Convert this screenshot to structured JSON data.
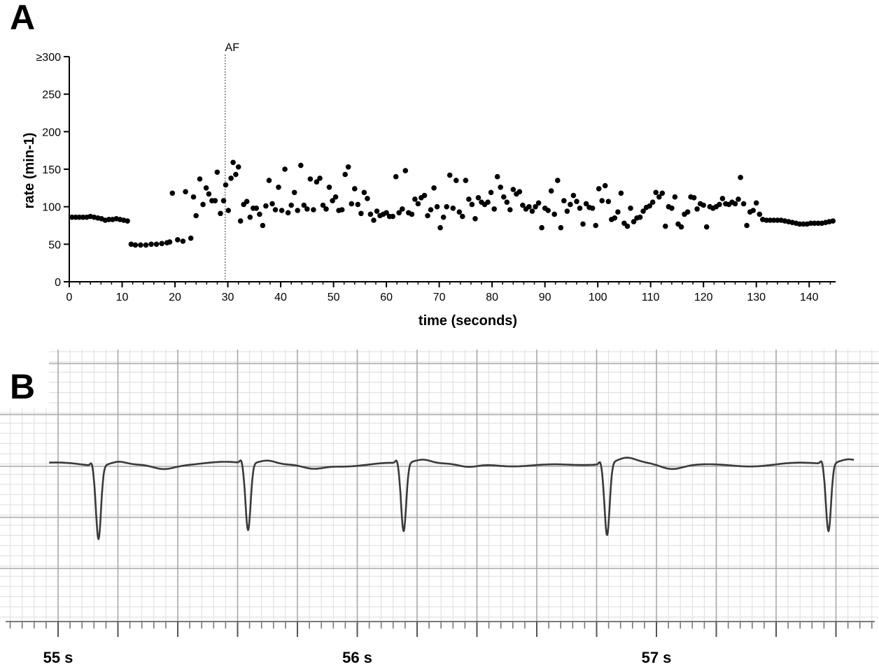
{
  "panels": {
    "a_letter": "A",
    "b_letter": "B"
  },
  "chart_data": [
    {
      "type": "scatter",
      "panel": "A",
      "title": "",
      "xlabel": "time (seconds)",
      "ylabel": "rate (min-1)",
      "xlim": [
        0,
        145
      ],
      "ylim": [
        0,
        300
      ],
      "xticks": [
        0,
        10,
        20,
        30,
        40,
        50,
        60,
        70,
        80,
        90,
        100,
        110,
        120,
        130,
        140
      ],
      "yticks": [
        0,
        50,
        100,
        150,
        200,
        250,
        300
      ],
      "ytick_labels": [
        "0",
        "50",
        "100",
        "150",
        "200",
        "250",
        "≥300"
      ],
      "annotation": {
        "label": "AF",
        "x": 29.5
      },
      "grid": false,
      "color": "#000000",
      "points": [
        [
          0.5,
          86
        ],
        [
          1.2,
          86
        ],
        [
          1.9,
          86
        ],
        [
          2.6,
          86
        ],
        [
          3.3,
          86
        ],
        [
          4.0,
          87
        ],
        [
          4.7,
          86
        ],
        [
          5.4,
          85
        ],
        [
          6.1,
          84
        ],
        [
          6.8,
          82
        ],
        [
          7.5,
          83
        ],
        [
          8.2,
          83
        ],
        [
          8.9,
          84
        ],
        [
          9.6,
          83
        ],
        [
          10.3,
          82
        ],
        [
          11.0,
          81
        ],
        [
          11.7,
          50
        ],
        [
          12.5,
          49
        ],
        [
          13.5,
          49
        ],
        [
          14.5,
          49
        ],
        [
          15.5,
          50
        ],
        [
          16.5,
          50
        ],
        [
          17.5,
          51
        ],
        [
          18.5,
          52
        ],
        [
          19.0,
          53
        ],
        [
          19.5,
          118
        ],
        [
          20.5,
          56
        ],
        [
          21.5,
          54
        ],
        [
          22.0,
          120
        ],
        [
          23.0,
          58
        ],
        [
          23.5,
          113
        ],
        [
          24.0,
          88
        ],
        [
          24.7,
          137
        ],
        [
          25.3,
          103
        ],
        [
          25.9,
          125
        ],
        [
          26.4,
          117
        ],
        [
          27.0,
          108
        ],
        [
          27.6,
          108
        ],
        [
          28.0,
          146
        ],
        [
          28.6,
          91
        ],
        [
          29.2,
          108
        ],
        [
          29.6,
          129
        ],
        [
          30.1,
          95
        ],
        [
          30.6,
          138
        ],
        [
          31.0,
          159
        ],
        [
          31.5,
          143
        ],
        [
          32.0,
          153
        ],
        [
          32.4,
          81
        ],
        [
          33.0,
          103
        ],
        [
          33.6,
          107
        ],
        [
          34.2,
          86
        ],
        [
          34.8,
          98
        ],
        [
          35.4,
          98
        ],
        [
          36.0,
          90
        ],
        [
          36.6,
          75
        ],
        [
          37.2,
          101
        ],
        [
          37.8,
          135
        ],
        [
          38.4,
          104
        ],
        [
          39.0,
          96
        ],
        [
          39.6,
          126
        ],
        [
          40.2,
          95
        ],
        [
          40.8,
          150
        ],
        [
          41.4,
          92
        ],
        [
          42.0,
          102
        ],
        [
          42.6,
          119
        ],
        [
          43.2,
          95
        ],
        [
          43.8,
          155
        ],
        [
          44.4,
          102
        ],
        [
          45.0,
          97
        ],
        [
          45.6,
          137
        ],
        [
          46.2,
          96
        ],
        [
          46.8,
          133
        ],
        [
          47.4,
          138
        ],
        [
          48.0,
          102
        ],
        [
          48.6,
          97
        ],
        [
          49.2,
          126
        ],
        [
          49.8,
          108
        ],
        [
          50.4,
          113
        ],
        [
          51.0,
          95
        ],
        [
          51.6,
          96
        ],
        [
          52.2,
          143
        ],
        [
          52.8,
          153
        ],
        [
          53.4,
          104
        ],
        [
          54.0,
          124
        ],
        [
          54.6,
          103
        ],
        [
          55.2,
          91
        ],
        [
          55.8,
          119
        ],
        [
          56.4,
          111
        ],
        [
          57.0,
          90
        ],
        [
          57.6,
          82
        ],
        [
          58.2,
          94
        ],
        [
          58.8,
          88
        ],
        [
          59.4,
          90
        ],
        [
          60.0,
          92
        ],
        [
          60.6,
          87
        ],
        [
          61.2,
          87
        ],
        [
          61.8,
          140
        ],
        [
          62.4,
          92
        ],
        [
          63.0,
          97
        ],
        [
          63.6,
          148
        ],
        [
          64.2,
          92
        ],
        [
          64.8,
          90
        ],
        [
          65.4,
          110
        ],
        [
          66.0,
          104
        ],
        [
          66.6,
          112
        ],
        [
          67.2,
          115
        ],
        [
          67.8,
          88
        ],
        [
          68.4,
          96
        ],
        [
          69.0,
          125
        ],
        [
          69.6,
          100
        ],
        [
          70.2,
          72
        ],
        [
          70.8,
          86
        ],
        [
          71.4,
          100
        ],
        [
          72.0,
          142
        ],
        [
          72.6,
          98
        ],
        [
          73.2,
          135
        ],
        [
          73.8,
          93
        ],
        [
          74.4,
          87
        ],
        [
          75.0,
          135
        ],
        [
          75.6,
          110
        ],
        [
          76.2,
          103
        ],
        [
          76.8,
          84
        ],
        [
          77.4,
          112
        ],
        [
          78.0,
          106
        ],
        [
          78.6,
          103
        ],
        [
          79.2,
          106
        ],
        [
          79.8,
          119
        ],
        [
          80.4,
          97
        ],
        [
          81.0,
          140
        ],
        [
          81.6,
          126
        ],
        [
          82.2,
          113
        ],
        [
          82.8,
          106
        ],
        [
          83.4,
          96
        ],
        [
          84.0,
          123
        ],
        [
          84.6,
          117
        ],
        [
          85.2,
          120
        ],
        [
          85.8,
          102
        ],
        [
          86.4,
          97
        ],
        [
          87.0,
          100
        ],
        [
          87.6,
          94
        ],
        [
          88.2,
          100
        ],
        [
          88.8,
          105
        ],
        [
          89.4,
          72
        ],
        [
          90.0,
          98
        ],
        [
          90.6,
          95
        ],
        [
          91.2,
          121
        ],
        [
          91.8,
          90
        ],
        [
          92.4,
          135
        ],
        [
          93.0,
          72
        ],
        [
          93.6,
          108
        ],
        [
          94.2,
          94
        ],
        [
          94.8,
          103
        ],
        [
          95.4,
          115
        ],
        [
          96.0,
          107
        ],
        [
          96.6,
          98
        ],
        [
          97.2,
          77
        ],
        [
          97.8,
          104
        ],
        [
          98.4,
          99
        ],
        [
          99.0,
          98
        ],
        [
          99.6,
          75
        ],
        [
          100.2,
          124
        ],
        [
          100.8,
          108
        ],
        [
          101.4,
          128
        ],
        [
          102.0,
          107
        ],
        [
          102.6,
          83
        ],
        [
          103.2,
          85
        ],
        [
          103.8,
          93
        ],
        [
          104.4,
          118
        ],
        [
          105.0,
          78
        ],
        [
          105.6,
          74
        ],
        [
          106.2,
          98
        ],
        [
          106.8,
          80
        ],
        [
          107.4,
          85
        ],
        [
          108.0,
          86
        ],
        [
          108.6,
          94
        ],
        [
          109.2,
          99
        ],
        [
          109.8,
          101
        ],
        [
          110.4,
          106
        ],
        [
          111.0,
          119
        ],
        [
          111.6,
          113
        ],
        [
          112.2,
          118
        ],
        [
          112.8,
          74
        ],
        [
          113.4,
          100
        ],
        [
          114.0,
          98
        ],
        [
          114.6,
          113
        ],
        [
          115.2,
          77
        ],
        [
          115.8,
          73
        ],
        [
          116.4,
          90
        ],
        [
          117.0,
          93
        ],
        [
          117.6,
          113
        ],
        [
          118.2,
          112
        ],
        [
          118.8,
          97
        ],
        [
          119.4,
          104
        ],
        [
          120.0,
          102
        ],
        [
          120.6,
          73
        ],
        [
          121.2,
          100
        ],
        [
          121.8,
          98
        ],
        [
          122.4,
          100
        ],
        [
          123.0,
          103
        ],
        [
          123.6,
          111
        ],
        [
          124.2,
          104
        ],
        [
          124.8,
          103
        ],
        [
          125.4,
          106
        ],
        [
          126.0,
          104
        ],
        [
          126.6,
          110
        ],
        [
          127.0,
          139
        ],
        [
          127.6,
          104
        ],
        [
          128.2,
          75
        ],
        [
          128.8,
          93
        ],
        [
          129.4,
          95
        ],
        [
          130.0,
          105
        ],
        [
          130.6,
          90
        ],
        [
          131.2,
          83
        ],
        [
          131.9,
          82
        ],
        [
          132.6,
          82
        ],
        [
          133.3,
          82
        ],
        [
          134.0,
          82
        ],
        [
          134.7,
          82
        ],
        [
          135.4,
          81
        ],
        [
          136.1,
          80
        ],
        [
          136.8,
          79
        ],
        [
          137.5,
          78
        ],
        [
          138.2,
          77
        ],
        [
          138.9,
          77
        ],
        [
          139.6,
          77
        ],
        [
          140.3,
          78
        ],
        [
          141.0,
          78
        ],
        [
          141.7,
          78
        ],
        [
          142.4,
          78
        ],
        [
          143.1,
          79
        ],
        [
          143.8,
          80
        ],
        [
          144.5,
          81
        ]
      ]
    },
    {
      "type": "line",
      "panel": "B",
      "title": "",
      "xlabel": "",
      "ylabel": "",
      "grid": true,
      "color": "#444444",
      "time_labels": [
        "55 s",
        "56 s",
        "57 s"
      ],
      "time_label_seconds": [
        55,
        56,
        57
      ],
      "xlim": [
        54.97,
        57.66
      ],
      "qrs_times": [
        55.13,
        55.63,
        56.15,
        56.83,
        57.57
      ],
      "qrs_depth_mv": [
        -1.05,
        -0.96,
        -0.98,
        -1.03,
        -0.97
      ]
    }
  ]
}
